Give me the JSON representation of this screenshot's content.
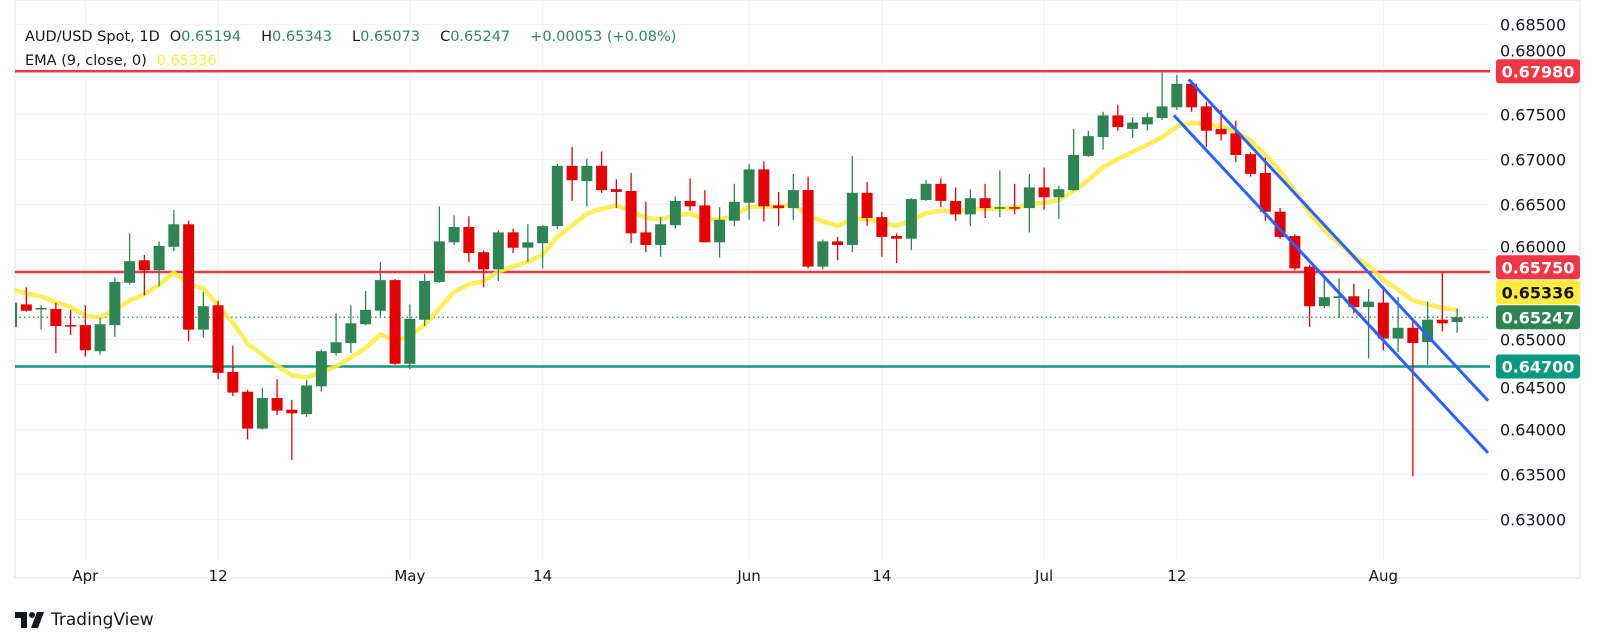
{
  "legend": {
    "symbol": "AUD/USD Spot, 1D",
    "open_label": "O",
    "open": "0.65194",
    "high_label": "H",
    "high": "0.65343",
    "low_label": "L",
    "low": "0.65073",
    "close_label": "C",
    "close": "0.65247",
    "change": "+0.00053 (+0.08%)",
    "ema_label": "EMA (9, close, 0)",
    "ema_value": "0.65336"
  },
  "branding": {
    "logo_text": "TradingView"
  },
  "colors": {
    "up": "#2e8553",
    "down": "#e60000",
    "ema": "#ffeb3b",
    "resistance": "#f23645",
    "support": "#089981",
    "channel": "#2962ff",
    "last_price": "#2e8553",
    "grid": "#f0f3fa",
    "text": "#131722"
  },
  "chart_data": {
    "type": "candlestick",
    "title": "AUD/USD Spot, 1D",
    "ylim": [
      0.628,
      0.687
    ],
    "y_ticks": [
      "0.68500",
      "0.68000",
      "0.67500",
      "0.67000",
      "0.66500",
      "0.66000",
      "0.65000",
      "0.64500",
      "0.64000",
      "0.63500",
      "0.63000"
    ],
    "x_ticks": [
      {
        "label": "Apr",
        "index": 5
      },
      {
        "label": "12",
        "index": 14
      },
      {
        "label": "May",
        "index": 27
      },
      {
        "label": "14",
        "index": 36
      },
      {
        "label": "Jun",
        "index": 50
      },
      {
        "label": "14",
        "index": 59
      },
      {
        "label": "Jul",
        "index": 70
      },
      {
        "label": "12",
        "index": 79
      },
      {
        "label": "Aug",
        "index": 93
      }
    ],
    "ohlc": [
      [
        0.6514,
        0.6544,
        0.6511,
        0.6541
      ],
      [
        0.6539,
        0.6558,
        0.6531,
        0.6532
      ],
      [
        0.6534,
        0.6538,
        0.6511,
        0.6535
      ],
      [
        0.6534,
        0.6541,
        0.6485,
        0.6515
      ],
      [
        0.6516,
        0.6533,
        0.6505,
        0.6515
      ],
      [
        0.6516,
        0.6538,
        0.6481,
        0.6488
      ],
      [
        0.6487,
        0.6524,
        0.6483,
        0.6517
      ],
      [
        0.6516,
        0.6569,
        0.6503,
        0.6564
      ],
      [
        0.6563,
        0.6618,
        0.6561,
        0.6587
      ],
      [
        0.6588,
        0.6594,
        0.6549,
        0.6577
      ],
      [
        0.6577,
        0.6609,
        0.6559,
        0.6604
      ],
      [
        0.6603,
        0.6644,
        0.6598,
        0.6628
      ],
      [
        0.6628,
        0.6632,
        0.6498,
        0.6511
      ],
      [
        0.6511,
        0.6553,
        0.6502,
        0.6537
      ],
      [
        0.6538,
        0.6543,
        0.6456,
        0.6463
      ],
      [
        0.6464,
        0.6493,
        0.6437,
        0.6441
      ],
      [
        0.6442,
        0.6444,
        0.6389,
        0.6401
      ],
      [
        0.6401,
        0.6446,
        0.64,
        0.6435
      ],
      [
        0.6435,
        0.6456,
        0.6416,
        0.6421
      ],
      [
        0.6422,
        0.6433,
        0.6366,
        0.6418
      ],
      [
        0.6417,
        0.6455,
        0.6414,
        0.6449
      ],
      [
        0.6448,
        0.6489,
        0.6442,
        0.6487
      ],
      [
        0.6485,
        0.6529,
        0.6482,
        0.6497
      ],
      [
        0.6496,
        0.6538,
        0.6485,
        0.6518
      ],
      [
        0.6517,
        0.6554,
        0.6516,
        0.6533
      ],
      [
        0.6532,
        0.6586,
        0.6526,
        0.6566
      ],
      [
        0.6566,
        0.6567,
        0.6472,
        0.6473
      ],
      [
        0.6473,
        0.6539,
        0.6467,
        0.6523
      ],
      [
        0.6522,
        0.6573,
        0.6515,
        0.6565
      ],
      [
        0.6564,
        0.6648,
        0.6563,
        0.6609
      ],
      [
        0.6608,
        0.6638,
        0.6605,
        0.6625
      ],
      [
        0.6625,
        0.6637,
        0.6586,
        0.6596
      ],
      [
        0.6597,
        0.6599,
        0.6558,
        0.6578
      ],
      [
        0.6578,
        0.6621,
        0.6565,
        0.6619
      ],
      [
        0.6619,
        0.6623,
        0.6596,
        0.6602
      ],
      [
        0.6602,
        0.6628,
        0.6586,
        0.6608
      ],
      [
        0.6607,
        0.6627,
        0.6579,
        0.6626
      ],
      [
        0.6626,
        0.6695,
        0.6623,
        0.6693
      ],
      [
        0.6693,
        0.6714,
        0.6654,
        0.6677
      ],
      [
        0.6676,
        0.6701,
        0.6648,
        0.6693
      ],
      [
        0.6693,
        0.6709,
        0.6663,
        0.6666
      ],
      [
        0.6667,
        0.6678,
        0.6646,
        0.6664
      ],
      [
        0.6665,
        0.6685,
        0.6607,
        0.6618
      ],
      [
        0.6619,
        0.6653,
        0.6597,
        0.6605
      ],
      [
        0.6605,
        0.6636,
        0.6592,
        0.6628
      ],
      [
        0.6627,
        0.6659,
        0.6623,
        0.6654
      ],
      [
        0.6654,
        0.6679,
        0.6643,
        0.6648
      ],
      [
        0.6649,
        0.6666,
        0.6608,
        0.6608
      ],
      [
        0.6608,
        0.6647,
        0.6591,
        0.6633
      ],
      [
        0.6632,
        0.6673,
        0.6626,
        0.6653
      ],
      [
        0.6652,
        0.6695,
        0.6633,
        0.6689
      ],
      [
        0.6689,
        0.6698,
        0.6631,
        0.6648
      ],
      [
        0.6649,
        0.6664,
        0.6626,
        0.6646
      ],
      [
        0.6646,
        0.6684,
        0.6633,
        0.6666
      ],
      [
        0.6666,
        0.6681,
        0.6579,
        0.6581
      ],
      [
        0.6581,
        0.6611,
        0.6578,
        0.6609
      ],
      [
        0.6609,
        0.6614,
        0.6588,
        0.6605
      ],
      [
        0.6605,
        0.6704,
        0.6597,
        0.6663
      ],
      [
        0.6663,
        0.6675,
        0.6626,
        0.6635
      ],
      [
        0.6636,
        0.6642,
        0.6592,
        0.6614
      ],
      [
        0.6615,
        0.6618,
        0.6585,
        0.6612
      ],
      [
        0.6612,
        0.6657,
        0.6599,
        0.6656
      ],
      [
        0.6655,
        0.6677,
        0.6654,
        0.6673
      ],
      [
        0.6673,
        0.6679,
        0.6647,
        0.6654
      ],
      [
        0.6654,
        0.6669,
        0.6632,
        0.6639
      ],
      [
        0.6639,
        0.6667,
        0.6626,
        0.6657
      ],
      [
        0.6657,
        0.6673,
        0.6635,
        0.6646
      ],
      [
        0.6646,
        0.6688,
        0.6636,
        0.6647
      ],
      [
        0.6647,
        0.6673,
        0.6639,
        0.6646
      ],
      [
        0.6646,
        0.6684,
        0.6619,
        0.6669
      ],
      [
        0.6669,
        0.6691,
        0.6644,
        0.6658
      ],
      [
        0.6658,
        0.6671,
        0.6634,
        0.6667
      ],
      [
        0.6666,
        0.6734,
        0.6665,
        0.6705
      ],
      [
        0.6704,
        0.6732,
        0.6703,
        0.6726
      ],
      [
        0.6725,
        0.6753,
        0.6711,
        0.6749
      ],
      [
        0.6749,
        0.6761,
        0.6732,
        0.6736
      ],
      [
        0.6734,
        0.6747,
        0.6724,
        0.6741
      ],
      [
        0.6739,
        0.6752,
        0.6732,
        0.6747
      ],
      [
        0.6746,
        0.6798,
        0.6744,
        0.6759
      ],
      [
        0.6758,
        0.6794,
        0.6755,
        0.6784
      ],
      [
        0.6784,
        0.6788,
        0.6753,
        0.6758
      ],
      [
        0.6759,
        0.6764,
        0.6714,
        0.6732
      ],
      [
        0.6734,
        0.6755,
        0.6721,
        0.6728
      ],
      [
        0.6729,
        0.6743,
        0.6697,
        0.6705
      ],
      [
        0.6706,
        0.6708,
        0.6681,
        0.6684
      ],
      [
        0.6685,
        0.6702,
        0.6632,
        0.6642
      ],
      [
        0.6642,
        0.6646,
        0.6612,
        0.6614
      ],
      [
        0.6615,
        0.6617,
        0.6577,
        0.6579
      ],
      [
        0.6581,
        0.6583,
        0.6514,
        0.6537
      ],
      [
        0.6537,
        0.6568,
        0.6535,
        0.6547
      ],
      [
        0.6546,
        0.6568,
        0.6524,
        0.6548
      ],
      [
        0.6548,
        0.6562,
        0.6529,
        0.6536
      ],
      [
        0.6536,
        0.6556,
        0.6479,
        0.6542
      ],
      [
        0.6541,
        0.6559,
        0.6488,
        0.6501
      ],
      [
        0.6501,
        0.6547,
        0.6486,
        0.6513
      ],
      [
        0.6513,
        0.6522,
        0.6348,
        0.6496
      ],
      [
        0.6497,
        0.6542,
        0.6472,
        0.6522
      ],
      [
        0.6522,
        0.6575,
        0.6509,
        0.6518
      ],
      [
        0.65194,
        0.65343,
        0.65073,
        0.65247
      ]
    ],
    "ema": {
      "period": 9,
      "seed": 0.6556
    },
    "levels": [
      {
        "price": 0.6798,
        "label": "0.67980",
        "kind": "resistance"
      },
      {
        "price": 0.6575,
        "label": "0.65750",
        "kind": "resistance"
      },
      {
        "price": 0.647,
        "label": "0.64700",
        "kind": "support"
      }
    ],
    "price_labels": [
      {
        "label": "0.67980",
        "price": 0.6798,
        "kind": "resistance"
      },
      {
        "label": "0.65750",
        "price": 0.6575,
        "kind": "resistance"
      },
      {
        "label": "0.65336",
        "price": 0.65336,
        "kind": "ema"
      },
      {
        "label": "0.65247",
        "price": 0.65247,
        "kind": "last_price"
      },
      {
        "label": "0.64700",
        "price": 0.647,
        "kind": "support"
      }
    ],
    "channel": [
      {
        "name": "upper",
        "points": [
          [
            79.8,
            0.6789
          ],
          [
            100.1,
            0.6432
          ]
        ]
      },
      {
        "name": "lower",
        "points": [
          [
            78.8,
            0.6749
          ],
          [
            100.1,
            0.6374
          ]
        ]
      }
    ]
  }
}
